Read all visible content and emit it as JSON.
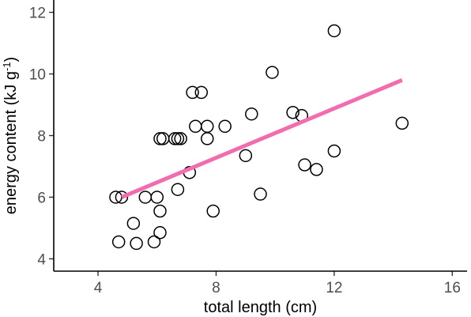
{
  "chart_data": {
    "type": "scatter",
    "title": "",
    "xlabel": "total length (cm)",
    "ylabel": "energy content (kJ g⁻¹)",
    "ylabel_parts": {
      "main": "energy content (kJ g",
      "sup": "-1",
      "end": ")"
    },
    "xlim": [
      2.5,
      16.5
    ],
    "ylim": [
      3.6,
      12.4
    ],
    "x_ticks": [
      4,
      8,
      12,
      16
    ],
    "y_ticks": [
      4,
      6,
      8,
      10,
      12
    ],
    "grid": false,
    "legend": "none",
    "point_color": "#000000",
    "trend_color": "#f06eb0",
    "points": [
      {
        "x": 4.6,
        "y": 6.0
      },
      {
        "x": 4.8,
        "y": 6.0
      },
      {
        "x": 4.7,
        "y": 4.55
      },
      {
        "x": 5.2,
        "y": 5.15
      },
      {
        "x": 5.3,
        "y": 4.5
      },
      {
        "x": 5.6,
        "y": 6.0
      },
      {
        "x": 5.9,
        "y": 4.55
      },
      {
        "x": 6.0,
        "y": 6.0
      },
      {
        "x": 6.1,
        "y": 5.55
      },
      {
        "x": 6.1,
        "y": 4.85
      },
      {
        "x": 6.1,
        "y": 7.9
      },
      {
        "x": 6.2,
        "y": 7.9
      },
      {
        "x": 6.6,
        "y": 7.9
      },
      {
        "x": 6.7,
        "y": 7.9
      },
      {
        "x": 6.8,
        "y": 7.9
      },
      {
        "x": 6.7,
        "y": 6.25
      },
      {
        "x": 7.1,
        "y": 6.8
      },
      {
        "x": 7.2,
        "y": 9.4
      },
      {
        "x": 7.5,
        "y": 9.4
      },
      {
        "x": 7.3,
        "y": 8.3
      },
      {
        "x": 7.7,
        "y": 8.3
      },
      {
        "x": 7.7,
        "y": 7.9
      },
      {
        "x": 7.9,
        "y": 5.55
      },
      {
        "x": 8.3,
        "y": 8.3
      },
      {
        "x": 9.0,
        "y": 7.35
      },
      {
        "x": 9.2,
        "y": 8.7
      },
      {
        "x": 9.5,
        "y": 6.1
      },
      {
        "x": 9.9,
        "y": 10.05
      },
      {
        "x": 10.6,
        "y": 8.75
      },
      {
        "x": 10.9,
        "y": 8.65
      },
      {
        "x": 11.0,
        "y": 7.05
      },
      {
        "x": 11.4,
        "y": 6.9
      },
      {
        "x": 12.0,
        "y": 11.4
      },
      {
        "x": 12.0,
        "y": 7.5
      },
      {
        "x": 14.3,
        "y": 8.4
      }
    ],
    "trend_line": {
      "x": [
        4.8,
        14.3
      ],
      "y": [
        6.0,
        9.8
      ]
    }
  }
}
